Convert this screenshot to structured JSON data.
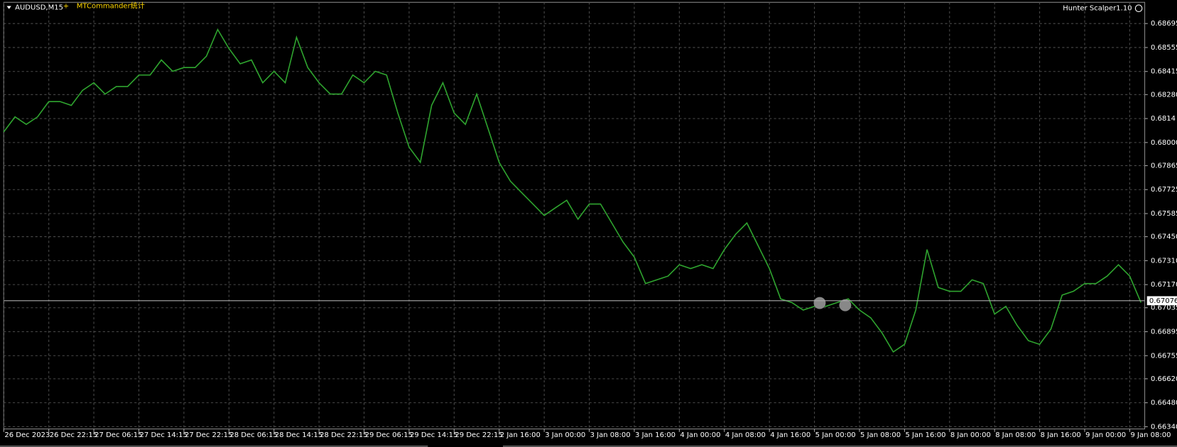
{
  "chart_data": {
    "type": "line",
    "title": "AUDUSD,M15",
    "indicator": "MTCommander统计",
    "annotation": "Hunter Scalper1.10",
    "categories": [
      "26 Dec 2023",
      null,
      null,
      null,
      "26 Dec 22:15",
      null,
      null,
      null,
      "27 Dec 06:15",
      null,
      null,
      null,
      "27 Dec 14:15",
      null,
      null,
      null,
      "27 Dec 22:15",
      null,
      null,
      null,
      "28 Dec 06:15",
      null,
      null,
      null,
      "28 Dec 14:15",
      null,
      null,
      null,
      "28 Dec 22:15",
      null,
      null,
      null,
      "29 Dec 06:15",
      null,
      null,
      null,
      "29 Dec 14:15",
      null,
      null,
      null,
      "29 Dec 22:15",
      null,
      null,
      null,
      "2 Jan 16:00",
      null,
      null,
      null,
      "3 Jan 00:00",
      null,
      null,
      null,
      "3 Jan 08:00",
      null,
      null,
      null,
      "3 Jan 16:00",
      null,
      null,
      null,
      "4 Jan 00:00",
      null,
      null,
      null,
      "4 Jan 08:00",
      null,
      null,
      null,
      "4 Jan 16:00",
      null,
      null,
      null,
      "5 Jan 00:00",
      null,
      null,
      null,
      "5 Jan 08:00",
      null,
      null,
      null,
      "5 Jan 16:00",
      null,
      null,
      null,
      "8 Jan 00:00",
      null,
      null,
      null,
      "8 Jan 08:00",
      null,
      null,
      null,
      "8 Jan 16:00",
      null,
      null,
      null,
      "9 Jan 00:00",
      null,
      null,
      null,
      "9 Jan 08:00",
      null
    ],
    "series": [
      {
        "name": "AUDUSD",
        "color": "#2fa52f",
        "values": [
          0.68062,
          0.6815,
          0.68106,
          0.6815,
          0.68239,
          0.68239,
          0.68217,
          0.68305,
          0.68349,
          0.68283,
          0.68327,
          0.68327,
          0.68394,
          0.68394,
          0.68482,
          0.68416,
          0.68438,
          0.68438,
          0.68504,
          0.6866,
          0.68549,
          0.6846,
          0.68482,
          0.68349,
          0.68416,
          0.68349,
          0.68615,
          0.68438,
          0.68349,
          0.68283,
          0.68283,
          0.68394,
          0.68349,
          0.68416,
          0.68394,
          0.68172,
          0.67973,
          0.67884,
          0.68217,
          0.68349,
          0.68172,
          0.68106,
          0.68283,
          0.68084,
          0.67884,
          0.67774,
          0.67707,
          0.67641,
          0.67574,
          0.67619,
          0.67663,
          0.67552,
          0.67641,
          0.67641,
          0.6753,
          0.67419,
          0.67331,
          0.67176,
          0.67198,
          0.6722,
          0.67286,
          0.67264,
          0.67286,
          0.67264,
          0.67375,
          0.67464,
          0.6753,
          0.67397,
          0.67264,
          0.67087,
          0.67065,
          0.67021,
          0.67043,
          0.67043,
          0.67065,
          0.67087,
          0.67021,
          0.66976,
          0.66888,
          0.66777,
          0.66821,
          0.67021,
          0.67375,
          0.67153,
          0.67131,
          0.67131,
          0.67198,
          0.67176,
          0.66998,
          0.67043,
          0.66932,
          0.66843,
          0.66821,
          0.6691,
          0.67109,
          0.67131,
          0.67176,
          0.67176,
          0.6722,
          0.67286,
          0.6722,
          0.67065
        ]
      }
    ],
    "current_price": 0.67076,
    "ylim": [
      0.66327,
      0.68819
    ],
    "yticks": [
      0.68695,
      0.68555,
      0.68415,
      {
        "value": 0.6828,
        "label": "0.68280"
      },
      0.6814,
      {
        "value": 0.68,
        "label": "0.68000"
      },
      0.67865,
      0.67725,
      0.67585,
      {
        "value": 0.6745,
        "label": "0.67450"
      },
      {
        "value": 0.6731,
        "label": "0.67310"
      },
      {
        "value": 0.6717,
        "label": "0.67170"
      },
      0.67035,
      0.66895,
      0.66755,
      {
        "value": 0.6662,
        "label": "0.66620"
      },
      {
        "value": 0.6648,
        "label": "0.66480"
      },
      {
        "value": 0.6634,
        "label": "0.66340"
      }
    ],
    "grid": true
  }
}
